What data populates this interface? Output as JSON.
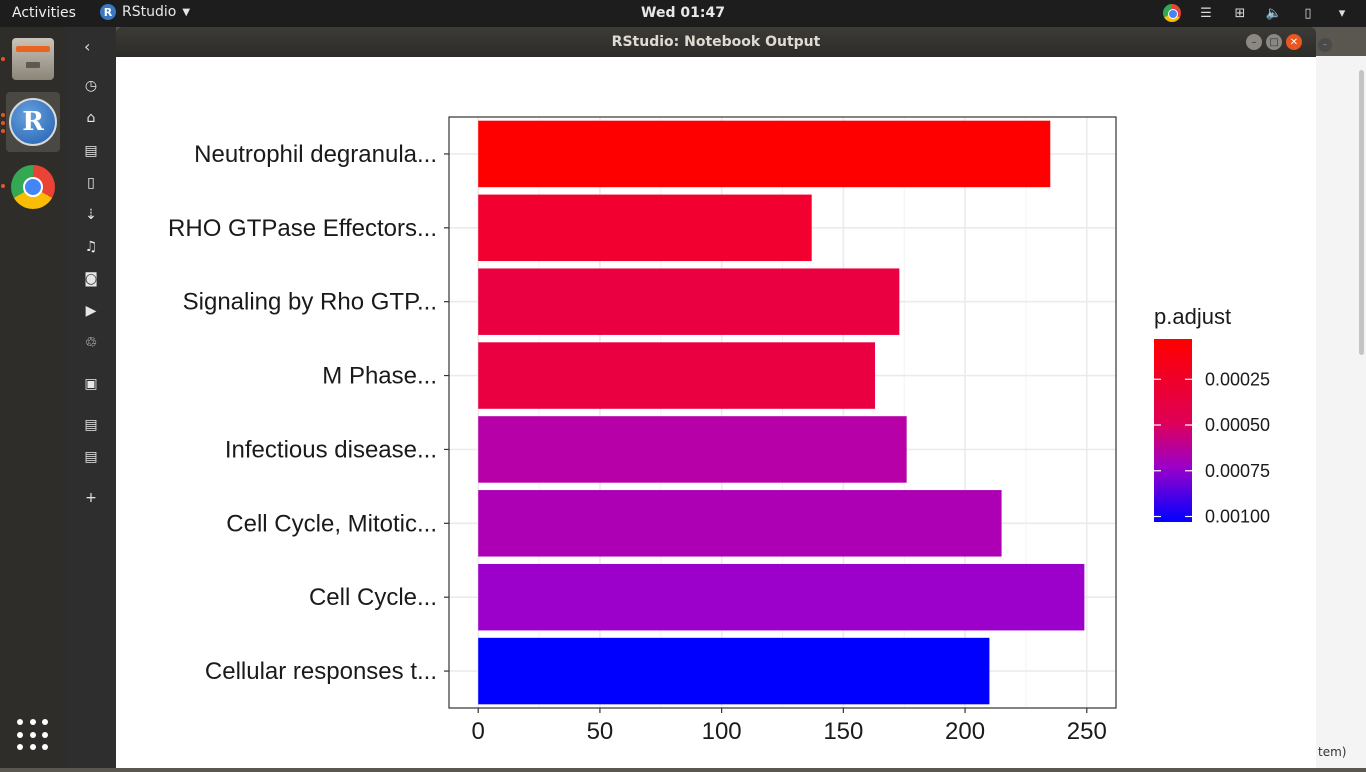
{
  "topbar": {
    "activities": "Activities",
    "app_name": "RStudio",
    "clock": "Wed 01:47"
  },
  "window": {
    "title": "RStudio: Notebook Output"
  },
  "background_window": {
    "partial_text": "tem)"
  },
  "chart_data": {
    "type": "bar",
    "orientation": "horizontal",
    "categories": [
      "Neutrophil degranula...",
      "RHO GTPase Effectors...",
      "Signaling by Rho GTP...",
      "M Phase...",
      "Infectious disease...",
      "Cell Cycle, Mitotic...",
      "Cell Cycle...",
      "Cellular responses t..."
    ],
    "values": [
      235,
      137,
      173,
      163,
      176,
      215,
      249,
      210
    ],
    "colors": [
      "#ff0000",
      "#f20030",
      "#ea0040",
      "#ea0040",
      "#b800a8",
      "#ad00b5",
      "#9c00cb",
      "#0000ff"
    ],
    "xlim": [
      -12,
      262
    ],
    "xticks": [
      0,
      50,
      100,
      150,
      200,
      250
    ],
    "legend": {
      "title": "p.adjust",
      "placement": "right",
      "labels": [
        "0.00025",
        "0.00050",
        "0.00075",
        "0.00100"
      ],
      "ticks": [
        0.00025,
        0.0005,
        0.00075,
        0.001
      ],
      "range": [
        3e-05,
        0.00103
      ],
      "gradient_top": "#ff0000",
      "gradient_bottom": "#0000ff"
    },
    "grid": true
  }
}
